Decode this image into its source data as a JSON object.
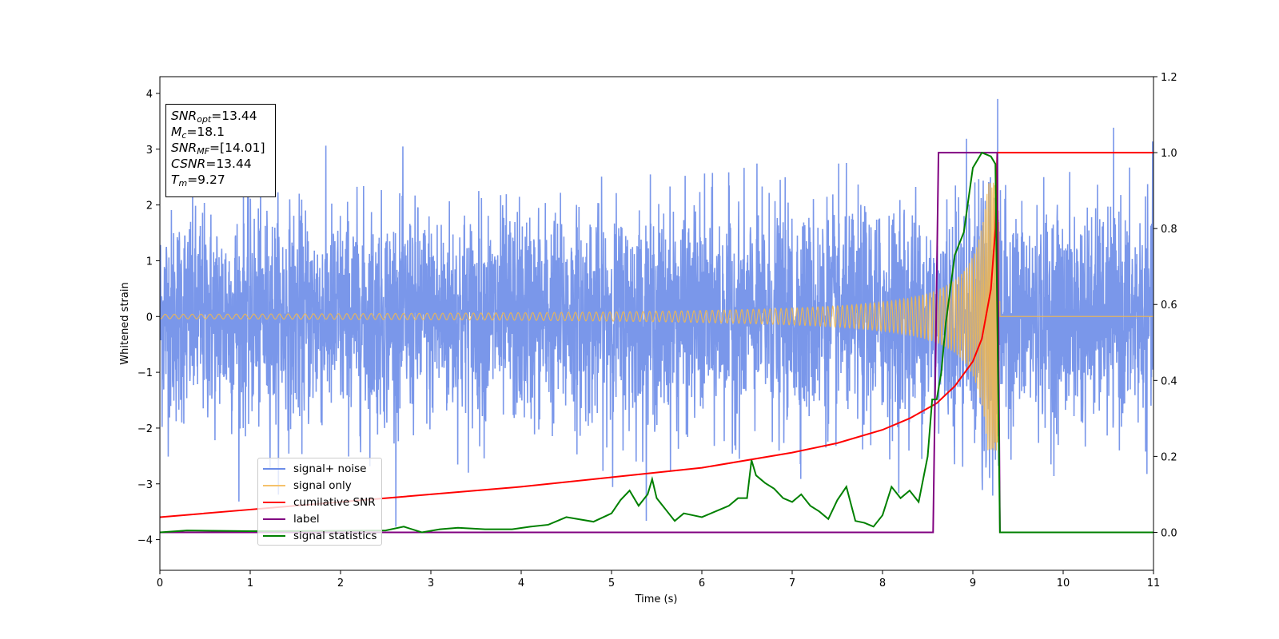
{
  "chart_data": {
    "type": "line",
    "xlabel": "Time (s)",
    "ylabel_left": "Whitened strain",
    "ylabel_right": "",
    "xlim": [
      0,
      11
    ],
    "ylim_left": [
      -4.55,
      4.3
    ],
    "ylim_right": [
      -0.1,
      1.2
    ],
    "x_ticks": [
      0,
      1,
      2,
      3,
      4,
      5,
      6,
      7,
      8,
      9,
      10,
      11
    ],
    "y_ticks_left": [
      -4,
      -3,
      -2,
      -1,
      0,
      1,
      2,
      3,
      4
    ],
    "y_ticks_right": [
      0.0,
      0.2,
      0.4,
      0.6,
      0.8,
      1.0,
      1.2
    ],
    "grid": false,
    "legend_placement": "lower-left",
    "series": [
      {
        "name": "signal+ noise",
        "axis": "left",
        "color": "#6b8ce8",
        "description_values": {
          "approx_std": 1.0,
          "range": [
            -4.2,
            3.9
          ]
        }
      },
      {
        "name": "signal only",
        "axis": "left",
        "color": "#f5b84a",
        "chirp": {
          "start_amplitude": 0.04,
          "peak_amplitude": 2.4,
          "peak_time": 9.27,
          "end_time": 9.3
        }
      },
      {
        "name": "cumilative SNR",
        "axis": "right",
        "color": "#ff0000",
        "x": [
          0,
          1,
          2,
          3,
          4,
          5,
          6,
          7,
          7.5,
          8,
          8.3,
          8.6,
          8.8,
          9.0,
          9.1,
          9.2,
          9.25,
          9.27,
          11
        ],
        "y": [
          0.04,
          0.06,
          0.08,
          0.1,
          0.12,
          0.145,
          0.17,
          0.21,
          0.235,
          0.27,
          0.3,
          0.34,
          0.385,
          0.45,
          0.51,
          0.64,
          0.8,
          1.0,
          1.0
        ]
      },
      {
        "name": "label",
        "axis": "right",
        "color": "#800080",
        "x": [
          0,
          8.56,
          8.62,
          9.27,
          9.3,
          11
        ],
        "y": [
          0,
          0,
          1,
          1,
          0,
          0
        ]
      },
      {
        "name": "signal statistics",
        "axis": "right",
        "color": "#008000",
        "x": [
          0,
          0.3,
          1,
          2,
          2.5,
          2.7,
          2.9,
          3.1,
          3.3,
          3.6,
          3.9,
          4.1,
          4.3,
          4.5,
          4.8,
          5.0,
          5.1,
          5.2,
          5.3,
          5.4,
          5.45,
          5.5,
          5.6,
          5.7,
          5.8,
          5.9,
          6.0,
          6.2,
          6.3,
          6.4,
          6.5,
          6.55,
          6.6,
          6.7,
          6.8,
          6.9,
          7.0,
          7.1,
          7.2,
          7.3,
          7.4,
          7.5,
          7.6,
          7.7,
          7.8,
          7.9,
          8.0,
          8.1,
          8.2,
          8.3,
          8.4,
          8.5,
          8.55,
          8.6,
          8.65,
          8.7,
          8.8,
          8.9,
          9.0,
          9.1,
          9.2,
          9.25,
          9.3,
          9.4,
          11
        ],
        "y": [
          0,
          0.005,
          0.003,
          0.004,
          0.005,
          0.015,
          0.0,
          0.008,
          0.012,
          0.008,
          0.008,
          0.015,
          0.02,
          0.04,
          0.028,
          0.05,
          0.085,
          0.11,
          0.07,
          0.1,
          0.14,
          0.09,
          0.06,
          0.03,
          0.05,
          0.045,
          0.04,
          0.06,
          0.07,
          0.09,
          0.09,
          0.19,
          0.15,
          0.13,
          0.115,
          0.09,
          0.08,
          0.1,
          0.07,
          0.055,
          0.035,
          0.085,
          0.12,
          0.03,
          0.025,
          0.015,
          0.045,
          0.12,
          0.09,
          0.11,
          0.08,
          0.2,
          0.35,
          0.35,
          0.42,
          0.55,
          0.73,
          0.79,
          0.96,
          1.0,
          0.99,
          0.97,
          0.0,
          0.0,
          0.0
        ]
      }
    ],
    "annotation": {
      "snr_opt": "=13.44",
      "mc": "=18.1",
      "snr_mf": "=[14.01]",
      "csnr": "=13.44",
      "tm": "=9.27"
    }
  },
  "legend": [
    {
      "label": "signal+ noise",
      "color": "#6b8ce8"
    },
    {
      "label": "signal only",
      "color": "#f5c26b"
    },
    {
      "label": "cumilative SNR",
      "color": "#ff0000"
    },
    {
      "label": "label",
      "color": "#800080"
    },
    {
      "label": "signal statistics",
      "color": "#008000"
    }
  ]
}
